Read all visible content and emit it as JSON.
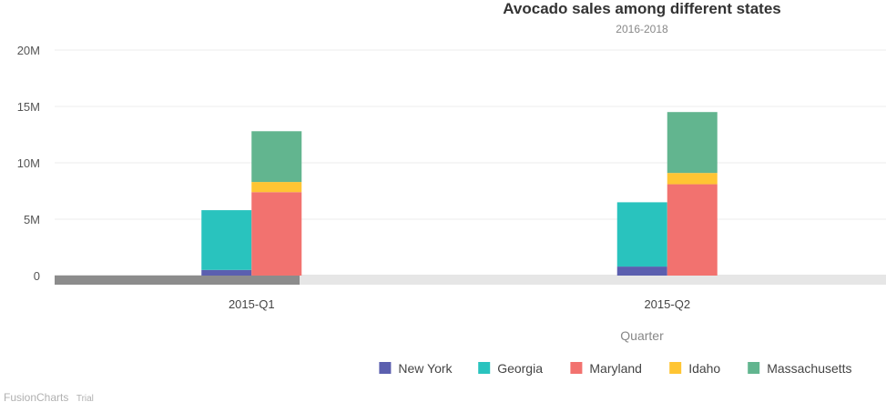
{
  "chart_data": {
    "type": "bar",
    "stacked": true,
    "title": "Avocado sales among different states",
    "subtitle": "2016-2018",
    "xlabel": "Quarter",
    "ylabel": "",
    "ylim": [
      0,
      20000000
    ],
    "yticks": [
      {
        "value": 0,
        "label": "0"
      },
      {
        "value": 5000000,
        "label": "5M"
      },
      {
        "value": 10000000,
        "label": "10M"
      },
      {
        "value": 15000000,
        "label": "15M"
      },
      {
        "value": 20000000,
        "label": "20M"
      }
    ],
    "categories": [
      "2015-Q1",
      "2015-Q2"
    ],
    "series": [
      {
        "name": "New York",
        "stack": 0,
        "color": "#5b5faf",
        "values": [
          500000,
          800000
        ]
      },
      {
        "name": "Georgia",
        "stack": 0,
        "color": "#29c3be",
        "values": [
          5300000,
          5700000
        ]
      },
      {
        "name": "Maryland",
        "stack": 1,
        "color": "#f2726f",
        "values": [
          7400000,
          8100000
        ]
      },
      {
        "name": "Idaho",
        "stack": 1,
        "color": "#ffc533",
        "values": [
          900000,
          1000000
        ]
      },
      {
        "name": "Massachusetts",
        "stack": 1,
        "color": "#62b58f",
        "values": [
          4500000,
          5400000
        ]
      }
    ],
    "grid": true,
    "legend_position": "bottom-right",
    "scroll_position": 0.5
  },
  "watermark": {
    "brand": "FusionCharts",
    "tag": "Trial"
  }
}
